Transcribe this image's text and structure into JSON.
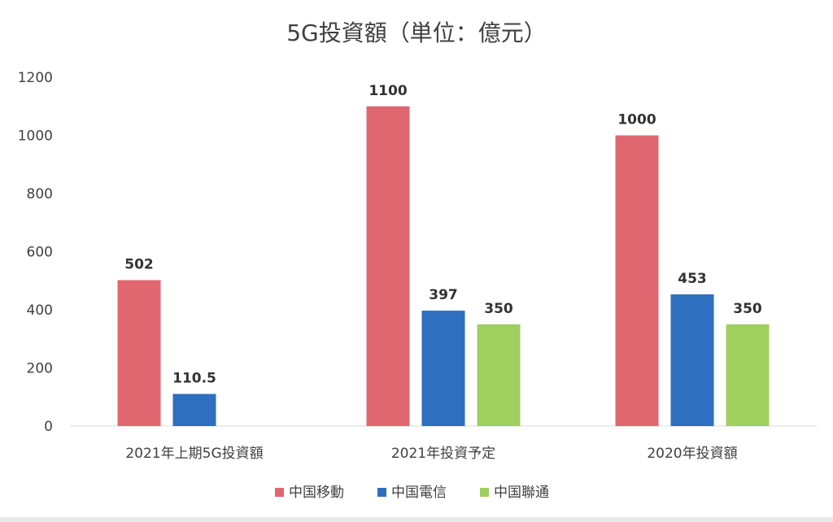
{
  "chart_data": {
    "type": "bar",
    "title": "5G投資額（単位：億元）",
    "categories": [
      "2021年上期5G投資額",
      "2021年投資予定",
      "2020年投資額"
    ],
    "series": [
      {
        "name": "中国移動",
        "color": "#e06670",
        "values": [
          502,
          1100,
          1000
        ],
        "labels": [
          "502",
          "1100",
          "1000"
        ]
      },
      {
        "name": "中国電信",
        "color": "#2e6fc0",
        "values": [
          110.5,
          397,
          453
        ],
        "labels": [
          "110.5",
          "397",
          "453"
        ]
      },
      {
        "name": "中国聯通",
        "color": "#9fcf5f",
        "values": [
          null,
          350,
          350
        ],
        "labels": [
          "",
          "350",
          "350"
        ]
      }
    ],
    "ylim": [
      0,
      1200
    ],
    "yticks": [
      0,
      200,
      400,
      600,
      800,
      1000,
      1200
    ],
    "xlabel": "",
    "ylabel": "",
    "grid": false,
    "legend_position": "bottom"
  }
}
